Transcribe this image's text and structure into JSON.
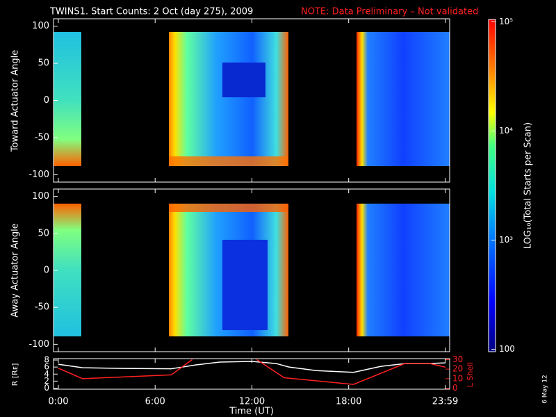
{
  "chart_data": [
    {
      "type": "heatmap",
      "title": "TWINS1. Start Counts:  2 Oct (day 275), 2009",
      "subtitle": "NOTE: Data Preliminary – Not validated",
      "ylabel": "Toward Actuator Angle",
      "ylim": [
        -110,
        110
      ],
      "yticks": [
        -100,
        -50,
        0,
        50,
        100
      ],
      "colorbar": {
        "label": "LOG₁₀(Total Starts per Scan)",
        "log": true,
        "lim": [
          95,
          105000
        ],
        "ticks": [
          100,
          {
            "value": 1000,
            "label": "10³"
          },
          {
            "value": 10000,
            "label": "10⁴"
          },
          {
            "value": 100000,
            "label": "10⁵"
          }
        ]
      }
    },
    {
      "type": "heatmap",
      "ylabel": "Away Actuator Angle",
      "ylim": [
        -110,
        110
      ],
      "yticks": [
        -100,
        -50,
        0,
        50,
        100
      ]
    },
    {
      "type": "line",
      "xlabel": "Time (UT)",
      "xlim": [
        -0.3,
        24.26
      ],
      "xticks": [
        {
          "value": 0,
          "label": "0:00"
        },
        {
          "value": 6,
          "label": "6:00"
        },
        {
          "value": 12,
          "label": "12:00"
        },
        {
          "value": 18,
          "label": "18:00"
        },
        {
          "value": 23.98,
          "label": "23:59"
        }
      ],
      "ylabel": "R [Rᴇ]",
      "ylim": [
        -0.3,
        8.4
      ],
      "yticks": [
        0,
        2,
        4,
        6,
        8
      ],
      "y2label": "L Shell",
      "y2lim": [
        -1,
        31
      ],
      "y2ticks": [
        0,
        10,
        20,
        30
      ],
      "side_note": "6 May 12",
      "series": [
        {
          "name": "R",
          "color": "#ffffff",
          "x": [
            0,
            1.5,
            4,
            7,
            8.5,
            10,
            12,
            13.5,
            14.3,
            16,
            18.3,
            20,
            21.5,
            23,
            24
          ],
          "values": [
            6.8,
            5.8,
            5.6,
            5.5,
            6.6,
            7.4,
            7.6,
            7.0,
            6.0,
            5.0,
            4.5,
            6.2,
            7.0,
            7.0,
            7.2
          ]
        },
        {
          "name": "L",
          "axis": "y2",
          "color": "#ff2020",
          "x": [
            0,
            1.5,
            7,
            8.3,
            10,
            12.3,
            14,
            18.3,
            21.5,
            23,
            24
          ],
          "values": [
            21,
            10,
            14,
            30,
            null,
            30,
            11,
            4,
            26,
            26,
            22
          ]
        }
      ]
    }
  ]
}
